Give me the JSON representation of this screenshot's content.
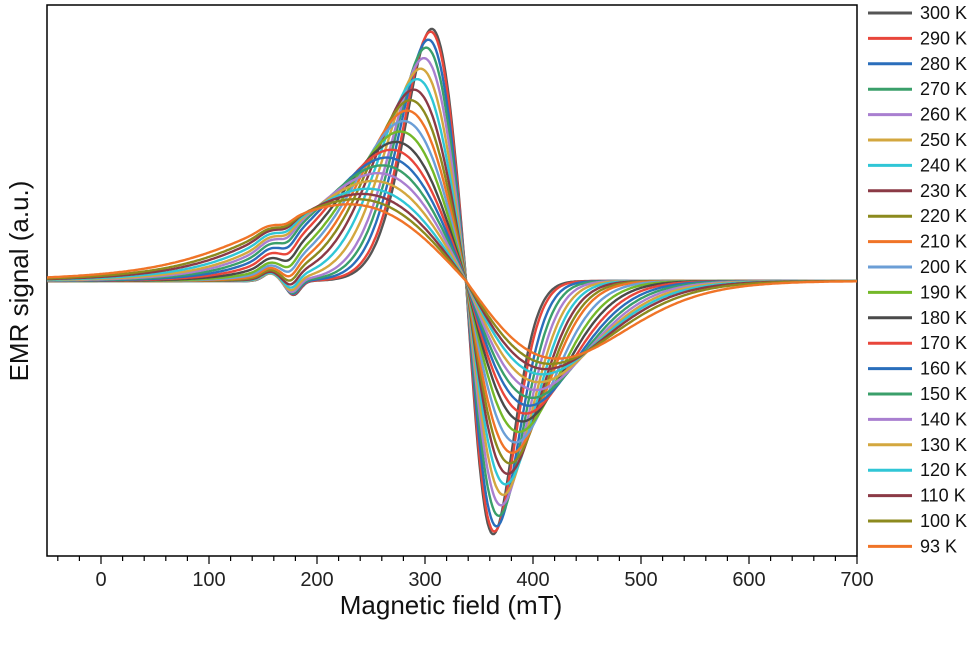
{
  "chart_data": {
    "type": "line",
    "title": "",
    "xlabel": "Magnetic field (mT)",
    "ylabel": "EMR signal (a.u.)",
    "xlim": [
      -50,
      700
    ],
    "ylim": [
      -1.0,
      1.0
    ],
    "x_ticks": [
      0,
      100,
      200,
      300,
      400,
      500,
      600,
      700
    ],
    "x_tick_labels": [
      "0",
      "100",
      "200",
      "300",
      "400",
      "500",
      "600",
      "700"
    ],
    "y_ticks_shown": false,
    "grid": false,
    "legend_position": "right-outside",
    "crossing_point": {
      "x": 338,
      "y": 0.0
    },
    "series": [
      {
        "name": "300 K",
        "color": "#555555",
        "peak_x": 307,
        "peak_y": 0.97,
        "trough_x": 363,
        "trough_y": -0.97
      },
      {
        "name": "290 K",
        "color": "#e8463b",
        "peak_x": 306,
        "peak_y": 0.96,
        "trough_x": 364,
        "trough_y": -0.96
      },
      {
        "name": "280 K",
        "color": "#2a6ebb",
        "peak_x": 304,
        "peak_y": 0.93,
        "trough_x": 366,
        "trough_y": -0.94
      },
      {
        "name": "270 K",
        "color": "#3a9f6a",
        "peak_x": 302,
        "peak_y": 0.9,
        "trough_x": 368,
        "trough_y": -0.9
      },
      {
        "name": "260 K",
        "color": "#a97fd0",
        "peak_x": 300,
        "peak_y": 0.86,
        "trough_x": 370,
        "trough_y": -0.86
      },
      {
        "name": "250 K",
        "color": "#d3a73f",
        "peak_x": 297,
        "peak_y": 0.82,
        "trough_x": 372,
        "trough_y": -0.82
      },
      {
        "name": "240 K",
        "color": "#30c6d6",
        "peak_x": 294,
        "peak_y": 0.78,
        "trough_x": 374,
        "trough_y": -0.78
      },
      {
        "name": "230 K",
        "color": "#8b3a46",
        "peak_x": 291,
        "peak_y": 0.74,
        "trough_x": 376,
        "trough_y": -0.74
      },
      {
        "name": "220 K",
        "color": "#8c8a1e",
        "peak_x": 288,
        "peak_y": 0.7,
        "trough_x": 378,
        "trough_y": -0.7
      },
      {
        "name": "210 K",
        "color": "#f07428",
        "peak_x": 285,
        "peak_y": 0.66,
        "trough_x": 380,
        "trough_y": -0.66
      },
      {
        "name": "200 K",
        "color": "#6b9ed6",
        "peak_x": 282,
        "peak_y": 0.62,
        "trough_x": 383,
        "trough_y": -0.62
      },
      {
        "name": "190 K",
        "color": "#74b829",
        "peak_x": 279,
        "peak_y": 0.58,
        "trough_x": 386,
        "trough_y": -0.58
      },
      {
        "name": "180 K",
        "color": "#4a4a4a",
        "peak_x": 275,
        "peak_y": 0.54,
        "trough_x": 389,
        "trough_y": -0.54
      },
      {
        "name": "170 K",
        "color": "#e8463b",
        "peak_x": 271,
        "peak_y": 0.51,
        "trough_x": 392,
        "trough_y": -0.51
      },
      {
        "name": "160 K",
        "color": "#2a6ebb",
        "peak_x": 267,
        "peak_y": 0.48,
        "trough_x": 395,
        "trough_y": -0.48
      },
      {
        "name": "150 K",
        "color": "#3a9f6a",
        "peak_x": 263,
        "peak_y": 0.45,
        "trough_x": 398,
        "trough_y": -0.45
      },
      {
        "name": "140 K",
        "color": "#a97fd0",
        "peak_x": 259,
        "peak_y": 0.42,
        "trough_x": 401,
        "trough_y": -0.42
      },
      {
        "name": "130 K",
        "color": "#d3a73f",
        "peak_x": 255,
        "peak_y": 0.39,
        "trough_x": 404,
        "trough_y": -0.39
      },
      {
        "name": "120 K",
        "color": "#30c6d6",
        "peak_x": 250,
        "peak_y": 0.36,
        "trough_x": 407,
        "trough_y": -0.36
      },
      {
        "name": "110 K",
        "color": "#8b3a46",
        "peak_x": 245,
        "peak_y": 0.34,
        "trough_x": 410,
        "trough_y": -0.34
      },
      {
        "name": "100 K",
        "color": "#8c8a1e",
        "peak_x": 240,
        "peak_y": 0.32,
        "trough_x": 414,
        "trough_y": -0.32
      },
      {
        "name": "93 K",
        "color": "#f07428",
        "peak_x": 233,
        "peak_y": 0.3,
        "trough_x": 420,
        "trough_y": -0.3
      }
    ]
  }
}
